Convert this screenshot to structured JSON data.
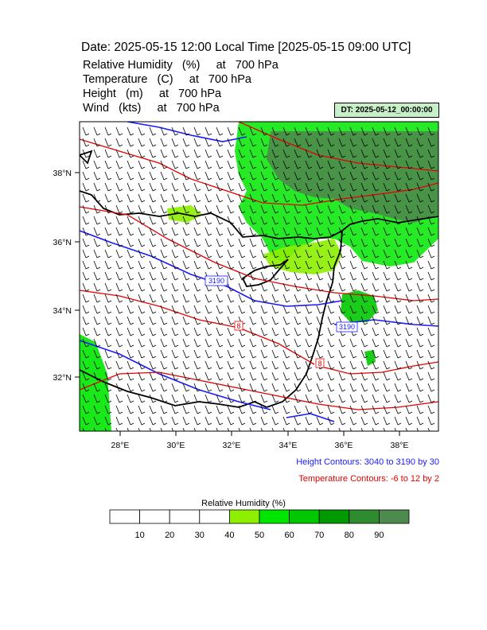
{
  "header": {
    "title": "Date: 2025-05-15  12:00 Local Time [2025-05-15  09:00 UTC]",
    "variables": [
      "Relative Humidity   (%)     at   700 hPa",
      "Temperature   (C)     at   700 hPa",
      "Height   (m)     at   700 hPa",
      "Wind   (kts)     at   700 hPa"
    ],
    "dt_label": "DT: 2025-05-12_00:00:00"
  },
  "map": {
    "lon_ticks": [
      "28°E",
      "30°E",
      "32°E",
      "34°E",
      "36°E",
      "38°E"
    ],
    "lat_ticks": [
      "38°N",
      "36°N",
      "34°N",
      "32°N"
    ],
    "contour_labels": [
      {
        "text": "3190",
        "color": "#1a1aff"
      },
      {
        "text": "3190",
        "color": "#1a1aff"
      },
      {
        "text": "8",
        "color": "#e60000"
      },
      {
        "text": "8",
        "color": "#e60000"
      }
    ],
    "colors": {
      "height_contour": "#1a1aff",
      "temperature_contour": "#e60000",
      "coastline": "#000000"
    }
  },
  "notes": {
    "height": "Height Contours: 3040 to 3190 by 30",
    "temperature": "Temperature Contours: -6 to 12 by 2"
  },
  "colorbar": {
    "title": "Relative Humidity  (%)",
    "labels": [
      "10",
      "20",
      "30",
      "40",
      "50",
      "60",
      "70",
      "80",
      "90"
    ],
    "colors": [
      "#ffffff",
      "#ffffff",
      "#ffffff",
      "#ffffff",
      "#8cf000",
      "#00e600",
      "#00c800",
      "#009a00",
      "#2e8b2e",
      "#4d8a4d"
    ]
  }
}
